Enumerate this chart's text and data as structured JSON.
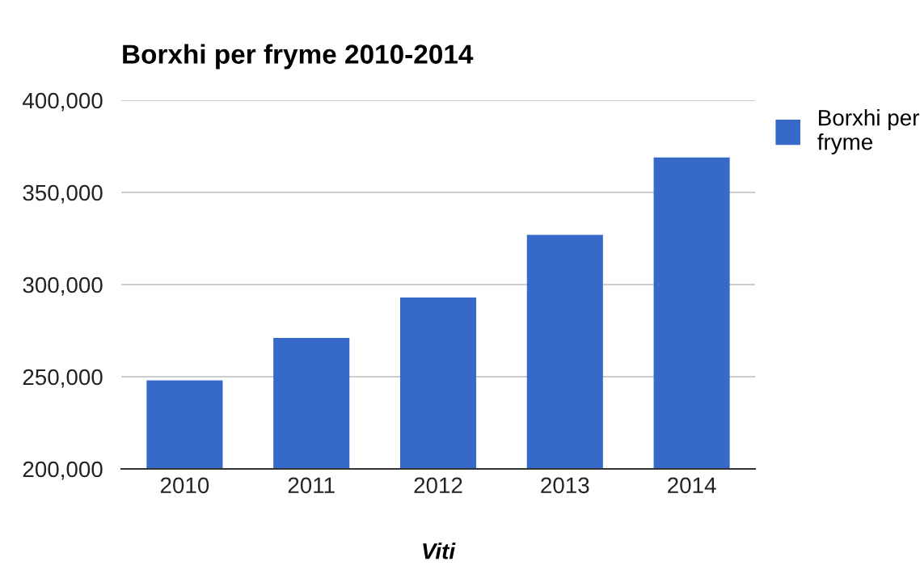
{
  "chart_data": {
    "type": "bar",
    "title": "Borxhi per fryme 2010-2014",
    "xlabel": "Viti",
    "categories": [
      "2010",
      "2011",
      "2012",
      "2013",
      "2014"
    ],
    "series": [
      {
        "name": "Borxhi per\nfryme",
        "color": "#3769c8",
        "values": [
          248000,
          271000,
          293000,
          327000,
          369000
        ]
      }
    ],
    "ylim": [
      200000,
      400000
    ],
    "yticks": [
      {
        "value": 200000,
        "label": "200,000"
      },
      {
        "value": 250000,
        "label": "250,000"
      },
      {
        "value": 300000,
        "label": "300,000"
      },
      {
        "value": 350000,
        "label": "350,000"
      },
      {
        "value": 400000,
        "label": "400,000"
      }
    ],
    "grid": "y",
    "legend": "top right"
  }
}
